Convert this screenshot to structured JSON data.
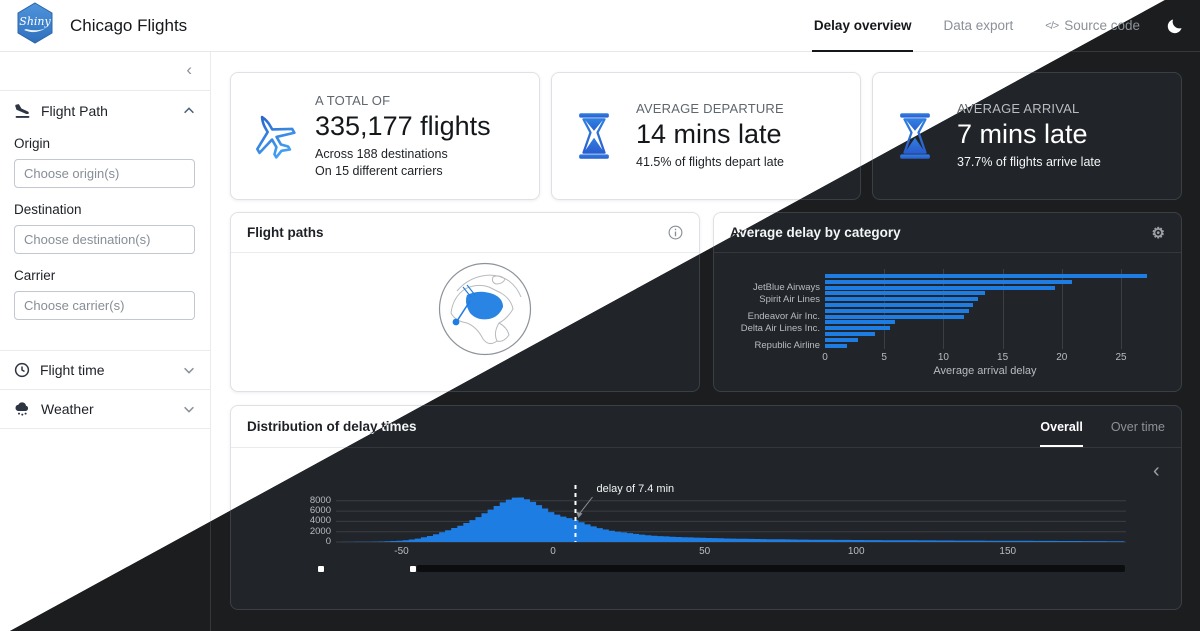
{
  "navbar": {
    "brand": "Chicago Flights",
    "logo_text": "Shiny",
    "tabs": [
      {
        "label": "Delay overview",
        "active": true
      },
      {
        "label": "Data export",
        "active": false
      },
      {
        "label": "Source code",
        "active": false,
        "icon": "code-icon",
        "icon_glyph": "</>"
      }
    ],
    "moon_icon": "dark-mode-toggle"
  },
  "sidebar": {
    "collapse_icon": "‹",
    "sections": [
      {
        "label": "Flight Path",
        "icon": "plane-arrival-icon",
        "expanded": true,
        "fields": [
          {
            "label": "Origin",
            "placeholder": "Choose origin(s)"
          },
          {
            "label": "Destination",
            "placeholder": "Choose destination(s)"
          },
          {
            "label": "Carrier",
            "placeholder": "Choose carrier(s)"
          }
        ]
      },
      {
        "label": "Flight time",
        "icon": "clock-icon",
        "expanded": false
      },
      {
        "label": "Weather",
        "icon": "cloud-rain-icon",
        "expanded": false
      }
    ]
  },
  "value_boxes": [
    {
      "title": "A TOTAL OF",
      "value": "335,177 flights",
      "subtitle1": "Across 188 destinations",
      "subtitle2": "On 15 different carriers",
      "icon": "airplane-icon"
    },
    {
      "title": "AVERAGE DEPARTURE",
      "value": "14 mins late",
      "subtitle1": "41.5% of flights depart late",
      "subtitle2": "",
      "icon": "hourglass-icon"
    },
    {
      "title": "AVERAGE ARRIVAL",
      "value": "7 mins late",
      "subtitle1": "37.7% of flights arrive late",
      "subtitle2": "",
      "icon": "hourglass-icon"
    }
  ],
  "cards": {
    "flight_paths": {
      "title": "Flight paths",
      "icon": "info-icon"
    },
    "avg_delay": {
      "title": "Average delay by category",
      "icon": "gear-icon",
      "gear_glyph": "⚙"
    },
    "distribution": {
      "title": "Distribution of delay times",
      "tabs": [
        {
          "label": "Overall",
          "active": true
        },
        {
          "label": "Over time",
          "active": false
        }
      ],
      "collapse_icon": "‹"
    }
  },
  "colors": {
    "accent": "#1e7de2",
    "icon_gradient_start": "#2b66cc",
    "icon_gradient_end": "#43a0f4"
  },
  "chart_data": [
    {
      "type": "bar",
      "orientation": "horizontal",
      "categories": [
        "",
        "",
        "JetBlue Airways",
        "",
        "Spirit Air Lines",
        "",
        "",
        "Endeavor Air Inc.",
        "",
        "Delta Air Lines Inc.",
        "",
        "",
        "Republic Airline"
      ],
      "values": [
        27.2,
        20.9,
        19.4,
        13.5,
        12.9,
        12.5,
        12.2,
        11.7,
        5.9,
        5.5,
        4.2,
        2.8,
        1.9
      ],
      "title": "Average delay by category",
      "xlabel": "Average arrival delay",
      "xticks": [
        0,
        5,
        10,
        15,
        20,
        25
      ],
      "xlim": [
        0,
        27.5
      ],
      "bar_color": "#1e7de2",
      "legend": "none",
      "grid": "vertical"
    },
    {
      "type": "area",
      "title": "Distribution of delay times (histogram of delay minutes)",
      "xlabel": "",
      "ylabel": "",
      "xticks": [
        -50,
        0,
        50,
        100,
        150
      ],
      "yticks": [
        0,
        2000,
        4000,
        6000,
        8000
      ],
      "xlim": [
        -71.6,
        189
      ],
      "ylim": [
        0,
        8900
      ],
      "annotation": {
        "text": "delay of 7.4 min",
        "x": 7.4
      },
      "bar_color": "#1e7de2",
      "grid": "horizontal",
      "profile": [
        [
          -70,
          10
        ],
        [
          -62,
          40
        ],
        [
          -55,
          120
        ],
        [
          -50,
          260
        ],
        [
          -45,
          600
        ],
        [
          -40,
          1250
        ],
        [
          -35,
          2200
        ],
        [
          -30,
          3300
        ],
        [
          -25,
          4700
        ],
        [
          -20,
          6500
        ],
        [
          -16,
          7900
        ],
        [
          -13,
          8600
        ],
        [
          -11,
          8700
        ],
        [
          -8,
          8200
        ],
        [
          -5,
          7300
        ],
        [
          -2,
          6300
        ],
        [
          0,
          5600
        ],
        [
          3,
          5000
        ],
        [
          5,
          4700
        ],
        [
          7.4,
          4300
        ],
        [
          10,
          3700
        ],
        [
          13,
          3100
        ],
        [
          16,
          2600
        ],
        [
          20,
          2100
        ],
        [
          25,
          1750
        ],
        [
          30,
          1400
        ],
        [
          35,
          1150
        ],
        [
          40,
          1000
        ],
        [
          50,
          800
        ],
        [
          60,
          650
        ],
        [
          70,
          560
        ],
        [
          80,
          480
        ],
        [
          90,
          430
        ],
        [
          100,
          390
        ],
        [
          110,
          350
        ],
        [
          120,
          320
        ],
        [
          130,
          290
        ],
        [
          140,
          265
        ],
        [
          150,
          245
        ],
        [
          160,
          220
        ],
        [
          170,
          195
        ],
        [
          180,
          170
        ],
        [
          189,
          150
        ]
      ]
    }
  ]
}
